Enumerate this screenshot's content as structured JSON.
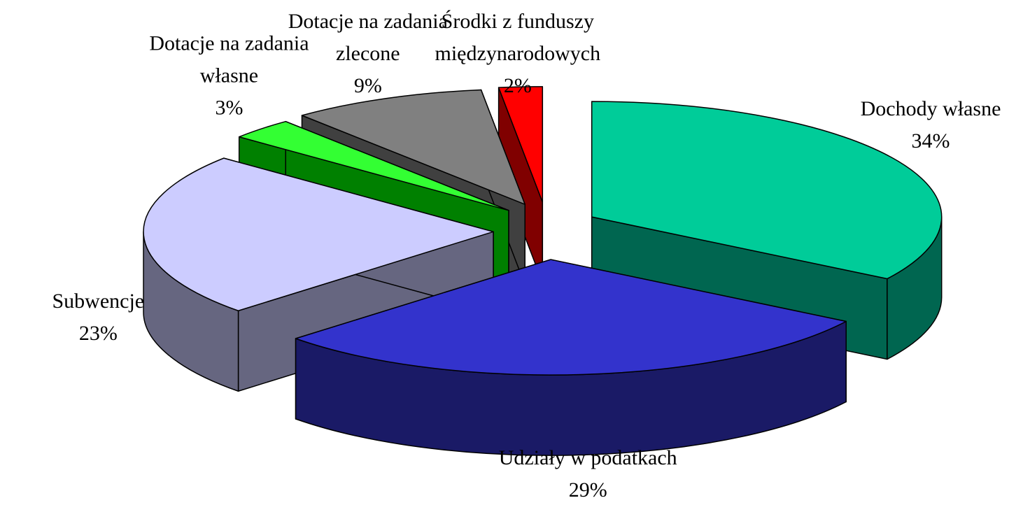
{
  "chart_data": {
    "type": "pie",
    "three_d": true,
    "exploded": true,
    "categories": [
      "Dochody własne",
      "Udziały w podatkach",
      "Subwencje",
      "Dotacje na zadania własne",
      "Dotacje na zadania zlecone",
      "Środki z funduszy międzynarodowych"
    ],
    "values": [
      34,
      29,
      23,
      3,
      9,
      2
    ],
    "value_labels": [
      "34%",
      "29%",
      "23%",
      "3%",
      "9%",
      "2%"
    ],
    "colors": [
      "#00cc99",
      "#3333cc",
      "#ccccff",
      "#33ff33",
      "#808080",
      "#ff0000"
    ],
    "side_colors": [
      "#006650",
      "#1a1a66",
      "#666680",
      "#008000",
      "#404040",
      "#800000"
    ]
  }
}
